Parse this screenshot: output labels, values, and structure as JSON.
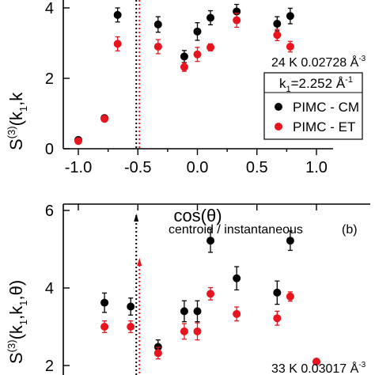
{
  "chart_data": [
    {
      "type": "scatter",
      "panel": "a",
      "xlabel": "cos(θ)",
      "ylabel_main": "S",
      "ylabel_sup": "(3)",
      "ylabel_rest": "(k",
      "ylabel_sub": "1",
      "ylabel_tail": ",k",
      "xlim": [
        -1.1,
        1.1
      ],
      "ylim": [
        0,
        4.2
      ],
      "xticks": [
        -1.0,
        -0.5,
        0.0,
        0.5,
        1.0
      ],
      "xtick_labels": [
        "-1.0",
        "-0.5",
        "0.0",
        "0.5",
        "1.0"
      ],
      "yticks": [
        0,
        2,
        4
      ],
      "ytick_labels": [
        "0",
        "2",
        "4"
      ],
      "annotation": "24 K  0.02728 Å",
      "annotation_sup": "-3",
      "legend_title_k": "k",
      "legend_title_sub": "1",
      "legend_title_rest": "=2.252 Å",
      "legend_title_sup": "-1",
      "vline_x": -0.5,
      "series": [
        {
          "name": "PIMC - CM",
          "color": "#000000",
          "x": [
            -1.0,
            -0.78,
            -0.67,
            -0.33,
            -0.11,
            0.0,
            0.11,
            0.33,
            0.67,
            0.78
          ],
          "y": [
            0.25,
            0.87,
            3.8,
            3.53,
            2.62,
            3.33,
            3.72,
            3.9,
            3.55,
            3.77
          ],
          "err": [
            0.05,
            0.06,
            0.2,
            0.22,
            0.17,
            0.25,
            0.2,
            0.2,
            0.2,
            0.22
          ]
        },
        {
          "name": "PIMC - ET",
          "color": "#e8141e",
          "x": [
            -1.0,
            -0.78,
            -0.67,
            -0.33,
            -0.11,
            0.0,
            0.11,
            0.33,
            0.67,
            0.78
          ],
          "y": [
            0.22,
            0.85,
            2.98,
            2.9,
            2.32,
            2.68,
            2.88,
            3.65,
            3.23,
            2.9
          ],
          "err": [
            0.04,
            0.05,
            0.2,
            0.2,
            0.12,
            0.2,
            0.1,
            0.2,
            0.16,
            0.15
          ]
        }
      ]
    },
    {
      "type": "scatter",
      "panel": "b",
      "panel_label": "(b)",
      "ylabel_main": "S",
      "ylabel_sup": "(3)",
      "ylabel_rest": "(k",
      "ylabel_sub": "1",
      "ylabel_tail": ",k",
      "ylabel_sub2": "1",
      "ylabel_end": ",θ)",
      "xlim": [
        -1.1,
        1.1
      ],
      "ylim": [
        2,
        6
      ],
      "yticks": [
        2,
        4,
        6
      ],
      "ytick_labels": [
        "2",
        "4",
        "6"
      ],
      "annotation_top": "centroid / instantaneous",
      "annotation": "33 K  0.03017 Å",
      "annotation_sup": "-3",
      "vline_x": -0.5,
      "series": [
        {
          "name": "PIMC - CM",
          "color": "#000000",
          "x": [
            -0.78,
            -0.56,
            -0.33,
            -0.11,
            0.0,
            0.11,
            0.33,
            0.67,
            0.78,
            1.0
          ],
          "y": [
            3.62,
            3.52,
            2.48,
            3.4,
            3.4,
            5.22,
            4.25,
            3.88,
            5.22,
            2.1
          ],
          "err": [
            0.25,
            0.22,
            0.18,
            0.27,
            0.27,
            0.3,
            0.3,
            0.3,
            0.25,
            0.05
          ]
        },
        {
          "name": "PIMC - ET",
          "color": "#e8141e",
          "x": [
            -0.78,
            -0.56,
            -0.33,
            -0.11,
            0.0,
            0.11,
            0.33,
            0.67,
            0.78,
            1.0
          ],
          "y": [
            3.0,
            3.0,
            2.32,
            2.88,
            2.88,
            3.85,
            3.33,
            3.22,
            3.78,
            2.1
          ],
          "err": [
            0.15,
            0.15,
            0.15,
            0.2,
            0.22,
            0.16,
            0.18,
            0.18,
            0.12,
            0.05
          ]
        }
      ]
    }
  ]
}
